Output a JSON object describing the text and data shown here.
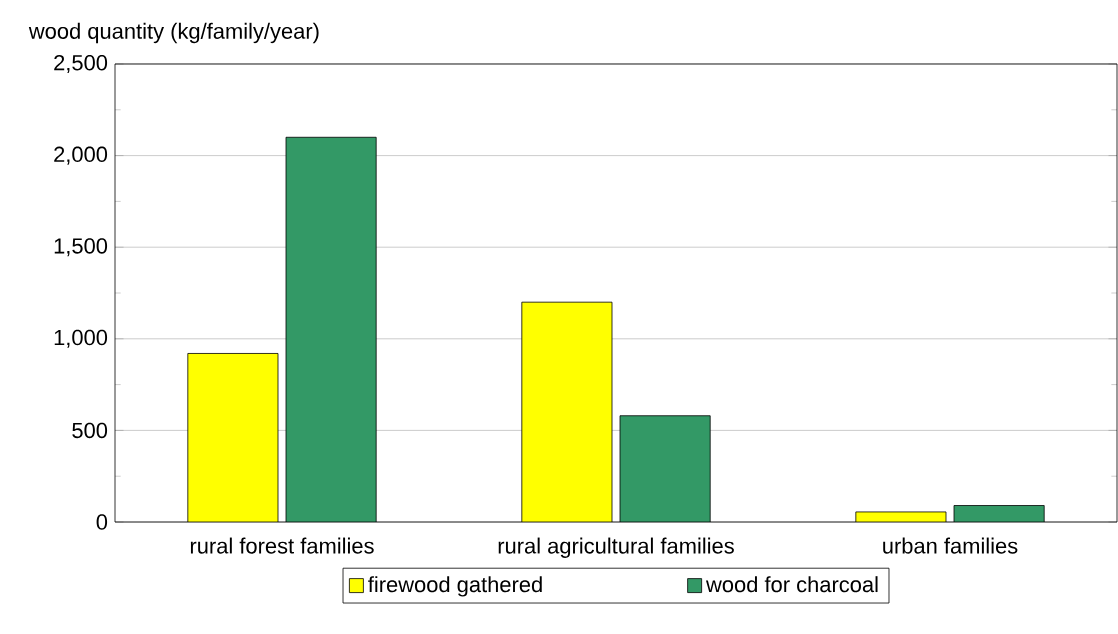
{
  "chart_data": {
    "type": "bar",
    "ylabel": "wood quantity (kg/family/year)",
    "categories": [
      "rural forest families",
      "rural agricultural families",
      "urban families"
    ],
    "series": [
      {
        "name": "firewood gathered",
        "color": "#ffff00",
        "values": [
          920,
          1200,
          55
        ]
      },
      {
        "name": "wood for charcoal",
        "color": "#339966",
        "values": [
          2100,
          580,
          90
        ]
      }
    ],
    "ylim": [
      0,
      2500
    ],
    "yticks": [
      0,
      500,
      {
        "value": 1000,
        "label": "1,000"
      },
      {
        "value": 1500,
        "label": "1,500"
      },
      {
        "value": 2000,
        "label": "2,000"
      },
      {
        "value": 2500,
        "label": "2,500"
      }
    ],
    "grid": "y",
    "legend": "bottom"
  }
}
